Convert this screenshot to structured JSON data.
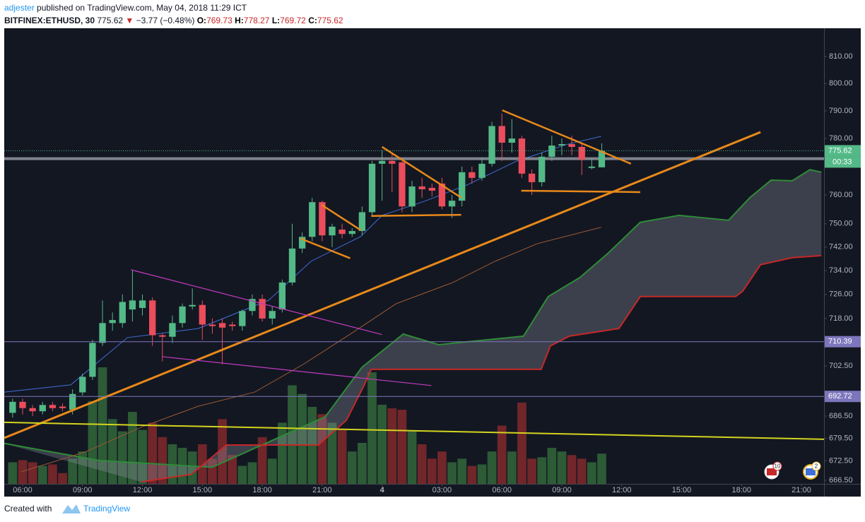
{
  "header": {
    "publisher": "adjester",
    "published": "published on TradingView.com, May 04, 2018 11:29 ICT",
    "symbol": "BITFINEX:ETHUSD, 30",
    "last": "775.62",
    "direction": "▼",
    "change": "−3.77 (−0.48%)",
    "ohlc": [
      {
        "label": "O:",
        "value": "769.73"
      },
      {
        "label": "H:",
        "value": "778.27"
      },
      {
        "label": "L:",
        "value": "769.72"
      },
      {
        "label": "C:",
        "value": "775.62"
      }
    ]
  },
  "chart_data": {
    "type": "candlestick",
    "x": [
      5.5,
      6,
      6.5,
      7,
      7.5,
      8,
      8.5,
      9,
      9.5,
      10,
      10.5,
      11,
      11.5,
      12,
      12.5,
      13,
      13.5,
      14,
      14.5,
      15,
      15.5,
      16,
      16.5,
      17,
      17.5,
      18,
      18.5,
      19,
      19.5,
      20,
      20.5,
      21,
      21.5,
      22,
      22.5,
      23,
      23.5,
      24,
      24.5,
      25,
      25.5,
      26,
      26.5,
      27,
      27.5,
      28,
      28.5,
      29,
      29.5,
      30,
      30.5,
      31,
      31.5,
      32,
      32.5,
      33,
      33.5,
      34,
      34.5,
      35
    ],
    "open": [
      687.5,
      691,
      689,
      688,
      690,
      689.5,
      688.5,
      694,
      699,
      710,
      716.5,
      716.5,
      721,
      721.5,
      724,
      712.5,
      712,
      716.5,
      722,
      722.5,
      716,
      716.5,
      716,
      715.5,
      720.5,
      724.5,
      718,
      721,
      730,
      741.5,
      745.5,
      757.5,
      746,
      748,
      746.5,
      747.5,
      754,
      771,
      772,
      771.5,
      756,
      763,
      762.5,
      764,
      756,
      758,
      768,
      766,
      771,
      784.5,
      778.5,
      780,
      767.5,
      764.5,
      773.5,
      777.5,
      778,
      777,
      769.5,
      769.73
    ],
    "high": [
      692,
      692,
      690,
      691,
      691,
      690.5,
      695,
      700,
      711,
      724,
      720,
      726,
      734,
      726,
      725,
      713,
      719,
      723,
      728,
      724,
      718,
      718,
      717,
      721,
      726,
      726,
      722,
      731,
      750,
      747,
      759,
      758,
      750,
      750,
      748.5,
      756,
      772,
      776,
      775,
      772,
      765,
      766,
      764,
      766,
      760,
      770,
      770,
      773,
      786,
      789,
      787,
      781,
      769,
      775,
      781,
      780,
      781,
      778,
      773,
      778.27
    ],
    "low": [
      686,
      687,
      686.5,
      687,
      688,
      688,
      687,
      693,
      698,
      709,
      714,
      715,
      717,
      719,
      709,
      704,
      710,
      715,
      721,
      711,
      713,
      703,
      714,
      714,
      719,
      717,
      716,
      720,
      729,
      740,
      744,
      744,
      742,
      745,
      745.5,
      746,
      753,
      758,
      761,
      754,
      754,
      759,
      759.5,
      755,
      752,
      756,
      764,
      765,
      770,
      772,
      775,
      766,
      760,
      763,
      772,
      774,
      774,
      767,
      769,
      769.72
    ],
    "close": [
      691,
      689,
      688,
      690,
      689,
      689,
      693.5,
      699,
      710,
      716.5,
      717.5,
      723.5,
      724,
      724,
      712.5,
      712,
      716.5,
      722,
      722.5,
      716,
      715.5,
      715,
      715.5,
      720.5,
      724.5,
      718,
      720.5,
      730,
      741.5,
      745.5,
      757.5,
      746,
      749,
      746.5,
      747.5,
      754,
      771,
      772,
      771,
      756,
      763,
      762,
      761.5,
      756,
      758,
      768,
      766,
      771,
      784.5,
      778.5,
      780,
      767.5,
      764.5,
      773.5,
      777.5,
      778,
      777,
      772.5,
      770,
      775.62
    ],
    "volume": [
      30,
      33,
      30,
      25,
      27,
      15,
      35,
      45,
      115,
      162,
      90,
      73,
      100,
      75,
      85,
      65,
      55,
      50,
      45,
      55,
      35,
      90,
      40,
      25,
      30,
      65,
      35,
      85,
      137,
      125,
      107,
      97,
      85,
      75,
      45,
      57,
      155,
      110,
      105,
      103,
      73,
      55,
      35,
      45,
      30,
      35,
      25,
      27,
      45,
      81,
      45,
      113,
      35,
      37,
      50,
      45,
      40,
      35,
      30,
      42
    ],
    "up_color": "#53b987",
    "down_color": "#eb4d5c",
    "volume_up_color": "rgba(76,175,80,0.45)",
    "volume_down_color": "rgba(229,57,53,0.45)",
    "xlim": [
      5.08,
      46.13
    ],
    "xticks": [
      {
        "value": 6,
        "label": "06:00"
      },
      {
        "value": 9,
        "label": "09:00"
      },
      {
        "value": 12,
        "label": "12:00"
      },
      {
        "value": 15,
        "label": "15:00"
      },
      {
        "value": 18,
        "label": "18:00"
      },
      {
        "value": 21,
        "label": "21:00"
      },
      {
        "value": 24,
        "label": "4"
      },
      {
        "value": 27,
        "label": "03:00"
      },
      {
        "value": 30,
        "label": "06:00"
      },
      {
        "value": 33,
        "label": "09:00"
      },
      {
        "value": 36,
        "label": "12:00"
      },
      {
        "value": 39,
        "label": "15:00"
      },
      {
        "value": 42,
        "label": "18:00"
      },
      {
        "value": 45,
        "label": "21:00"
      }
    ],
    "ylim": [
      665.4,
      820.6
    ],
    "log_scale": true,
    "grid": false,
    "yticks": [
      {
        "value": 810,
        "label": "810.00"
      },
      {
        "value": 800,
        "label": "800.00"
      },
      {
        "value": 790,
        "label": "790.00"
      },
      {
        "value": 780,
        "label": "780.00"
      },
      {
        "value": 760,
        "label": "760.00"
      },
      {
        "value": 750,
        "label": "750.00"
      },
      {
        "value": 742,
        "label": "742.00"
      },
      {
        "value": 734,
        "label": "734.00"
      },
      {
        "value": 726,
        "label": "726.00"
      },
      {
        "value": 718,
        "label": "718.00"
      },
      {
        "value": 702.5,
        "label": "702.50"
      },
      {
        "value": 686.5,
        "label": "686.50"
      },
      {
        "value": 679.5,
        "label": "679.50"
      },
      {
        "value": 672.5,
        "label": "672.50"
      },
      {
        "value": 666.5,
        "label": "666.50"
      }
    ],
    "series": [
      {
        "color": "#2e8b37",
        "width": 2,
        "x": [
          5.08,
          9.83,
          15.49,
          21.16,
          23.0,
          25.06,
          26.83,
          31.08,
          32.32,
          33.91,
          35.33,
          36.93,
          38.87,
          41.35,
          42.42,
          43.48,
          44.54,
          45.43,
          46.0
        ],
        "values": [
          677.9,
          672.6,
          670.5,
          686.3,
          702.1,
          712.9,
          709.4,
          712.2,
          725.3,
          731.7,
          740.0,
          750.5,
          752.9,
          751.2,
          759.1,
          765.2,
          765.0,
          768.9,
          768.0
        ]
      },
      {
        "color": "#c62828",
        "width": 2,
        "x": [
          11.95,
          14.43,
          14.96,
          16.2,
          20.81,
          22.22,
          23.11,
          23.46,
          31.97,
          32.43,
          33.38,
          35.86,
          36.93,
          41.71,
          42.06,
          42.95,
          44.54,
          46.0
        ],
        "values": [
          666,
          668.3,
          670.9,
          677.4,
          677.4,
          685.2,
          696.4,
          701.4,
          701.4,
          709.0,
          712.2,
          714.7,
          725.3,
          725.3,
          727.1,
          736.0,
          738.4,
          739.1
        ]
      },
      {
        "color": "#3f6fd8",
        "width": 1,
        "x": [
          5.08,
          8.41,
          11.24,
          14.79,
          18.33,
          20.45,
          22.93,
          24.0,
          26.12,
          28.25,
          30.73,
          33.2,
          34.97
        ],
        "values": [
          694.1,
          696.4,
          711.7,
          714.7,
          724.1,
          737.2,
          745.6,
          752.9,
          757.8,
          763.5,
          771.9,
          777.8,
          780.8
        ]
      },
      {
        "color": "#9c5a32",
        "width": 1,
        "x": [
          5.93,
          9.12,
          11.95,
          14.79,
          17.62,
          20.1,
          22.58,
          24.7,
          27.54,
          29.67,
          31.79,
          34.97
        ],
        "values": [
          669.1,
          675.2,
          683.0,
          689.6,
          694.1,
          703.2,
          713.6,
          722.9,
          730.0,
          737.2,
          743.2,
          748.8
        ]
      }
    ],
    "cloud_fill": "rgba(150,152,165,0.32)",
    "trendlines": [
      {
        "color": "#e8891a",
        "width": 3,
        "x": [
          5.08,
          42.95
        ],
        "values": [
          679.6,
          782.3
        ]
      },
      {
        "color": "#e8891a",
        "width": 2.5,
        "x": [
          19.92,
          22.4
        ],
        "values": [
          744.9,
          738.2
        ]
      },
      {
        "color": "#e8891a",
        "width": 2.5,
        "x": [
          20.98,
          22.93
        ],
        "values": [
          756.5,
          747.8
        ]
      },
      {
        "color": "#e8891a",
        "width": 2.5,
        "x": [
          23.46,
          27.96
        ],
        "values": [
          752.7,
          753.1
        ]
      },
      {
        "color": "#e8891a",
        "width": 2.5,
        "x": [
          24.0,
          27.96
        ],
        "values": [
          777.0,
          759.1
        ]
      },
      {
        "color": "#e8891a",
        "width": 2.5,
        "x": [
          30.02,
          36.46
        ],
        "values": [
          790.2,
          771.0
        ]
      },
      {
        "color": "#e8891a",
        "width": 2.5,
        "x": [
          30.97,
          36.93
        ],
        "values": [
          761.5,
          761.0
        ]
      },
      {
        "color": "#c23bc2",
        "width": 1.2,
        "x": [
          11.42,
          24.0
        ],
        "values": [
          734.3,
          712.7
        ]
      },
      {
        "color": "#c23bc2",
        "width": 1.2,
        "x": [
          13.01,
          26.47
        ],
        "values": [
          705.5,
          696.2
        ]
      },
      {
        "color": "#d4d41e",
        "width": 2,
        "x": [
          5.08,
          46.13
        ],
        "values": [
          684.5,
          679.2
        ]
      }
    ],
    "horizontal_lines": [
      {
        "value": 772.8,
        "color": "#9598a1",
        "width": 4
      }
    ],
    "price_lines": [
      {
        "value": 775.62,
        "color": "#53b987",
        "dashed": true
      },
      {
        "value": 710.39,
        "color": "#7e76bd",
        "dashed": false
      },
      {
        "value": 692.72,
        "color": "#7e76bd",
        "dashed": false
      }
    ],
    "countdown": "00:33"
  },
  "badges": [
    "10",
    "2"
  ],
  "footer": {
    "text": "Created with",
    "brand": "TradingView"
  }
}
